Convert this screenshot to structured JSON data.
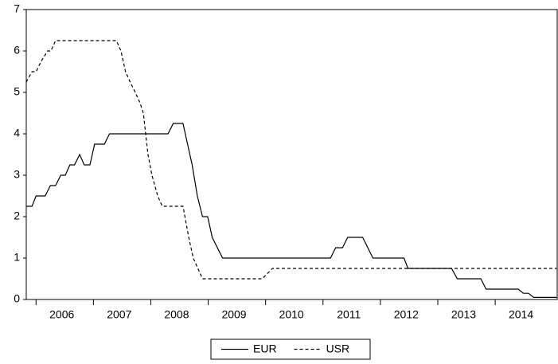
{
  "chart_data": {
    "type": "line",
    "xlim": [
      2005.83,
      2015.08
    ],
    "xticks": [
      2006,
      2007,
      2008,
      2009,
      2010,
      2011,
      2012,
      2013,
      2014
    ],
    "ylim": [
      0,
      7
    ],
    "yticks": [
      0,
      1,
      2,
      3,
      4,
      5,
      6,
      7
    ],
    "legend": "bottom",
    "series": [
      {
        "name": "EUR",
        "color": "#000000",
        "dash": "solid",
        "x": [
          2005.83,
          2005.93,
          2006.0,
          2006.16,
          2006.25,
          2006.34,
          2006.43,
          2006.51,
          2006.59,
          2006.67,
          2006.76,
          2006.84,
          2006.94,
          2007.02,
          2007.19,
          2007.28,
          2008.3,
          2008.39,
          2008.56,
          2008.72,
          2008.81,
          2008.9,
          2008.99,
          2009.07,
          2009.25,
          2011.13,
          2011.22,
          2011.34,
          2011.43,
          2011.69,
          2011.87,
          2012.41,
          2012.48,
          2013.24,
          2013.34,
          2013.75,
          2013.84,
          2014.4,
          2014.49,
          2014.58,
          2014.67,
          2015.07
        ],
        "values": [
          2.25,
          2.25,
          2.5,
          2.5,
          2.75,
          2.75,
          3.0,
          3.0,
          3.25,
          3.25,
          3.5,
          3.25,
          3.25,
          3.75,
          3.75,
          4.0,
          4.0,
          4.25,
          4.25,
          3.25,
          2.5,
          2.0,
          2.0,
          1.5,
          1.0,
          1.0,
          1.25,
          1.25,
          1.5,
          1.5,
          1.0,
          1.0,
          0.75,
          0.75,
          0.5,
          0.5,
          0.25,
          0.25,
          0.15,
          0.15,
          0.05,
          0.05
        ]
      },
      {
        "name": "USR",
        "color": "#000000",
        "dash": "dashed",
        "x": [
          2005.83,
          2005.93,
          2006.0,
          2006.09,
          2006.2,
          2006.26,
          2006.34,
          2007.4,
          2007.48,
          2007.56,
          2007.64,
          2007.73,
          2007.81,
          2007.87,
          2007.95,
          2008.02,
          2008.12,
          2008.2,
          2008.56,
          2008.66,
          2008.74,
          2008.9,
          2009.94,
          2010.12,
          2015.07
        ],
        "values": [
          5.25,
          5.5,
          5.5,
          5.75,
          6.0,
          6.0,
          6.25,
          6.25,
          6.0,
          5.5,
          5.25,
          5.0,
          4.75,
          4.5,
          3.5,
          3.0,
          2.5,
          2.25,
          2.25,
          1.5,
          1.0,
          0.5,
          0.5,
          0.75,
          0.75
        ]
      }
    ]
  }
}
